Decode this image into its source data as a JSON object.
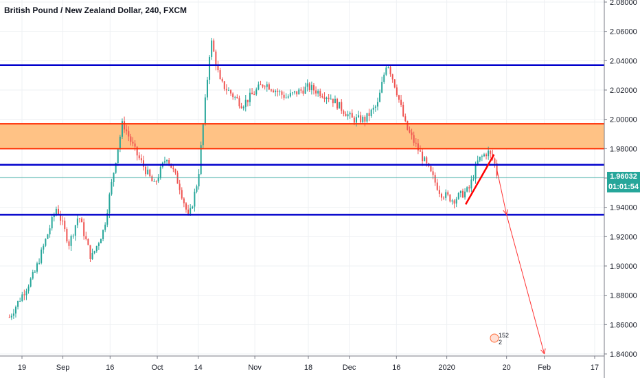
{
  "header": {
    "title": "British Pound / New Zealand Dollar, 240, FXCM"
  },
  "price_tags": {
    "last_price": "1.96032",
    "countdown": "01:01:54"
  },
  "badge": {
    "text": "152 2"
  },
  "colors": {
    "background": "#ffffff",
    "up_candle": "#26a69a",
    "down_candle": "#ef5350",
    "support_resistance": "#0000cc",
    "zone_fill": "#ffc285",
    "zone_border": "#ff2a00",
    "trendline": "#ff0000",
    "projection": "#ff3333",
    "price_line": "#26a69a",
    "axis_text": "#131722"
  },
  "chart_data": {
    "type": "candlestick",
    "title": "British Pound / New Zealand Dollar, 240, FXCM",
    "xlabel": "",
    "ylabel": "",
    "x_ticks": [
      "19",
      "Sep",
      "16",
      "Oct",
      "14",
      "Nov",
      "18",
      "Dec",
      "16",
      "2020",
      "20",
      "Feb",
      "17"
    ],
    "y_ticks": [
      "1.84000",
      "1.86000",
      "1.88000",
      "1.90000",
      "1.92000",
      "1.94000",
      "1.96000",
      "1.98000",
      "2.00000",
      "2.02000",
      "2.04000",
      "2.06000",
      "2.08000"
    ],
    "ylim": [
      1.84,
      2.08
    ],
    "grid": true,
    "last_price": 1.96032,
    "horizontal_lines": [
      2.037,
      1.969,
      1.935
    ],
    "zone": [
      1.98,
      1.997
    ],
    "trendline": {
      "from": [
        "Jan 7",
        1.942
      ],
      "to": [
        "Jan 16",
        1.976
      ]
    },
    "projection_path": [
      [
        "Jan 17",
        1.965
      ],
      [
        "Jan 20",
        1.935
      ],
      [
        "Feb 1",
        1.84
      ]
    ],
    "path_keypoints": [
      [
        "Aug 15",
        1.865
      ],
      [
        "Aug 23",
        1.895
      ],
      [
        "Aug 30",
        1.94
      ],
      [
        "Sep 3",
        1.915
      ],
      [
        "Sep 6",
        1.935
      ],
      [
        "Sep 10",
        1.905
      ],
      [
        "Sep 14",
        1.925
      ],
      [
        "Sep 18",
        1.975
      ],
      [
        "Sep 20",
        1.998
      ],
      [
        "Sep 24",
        1.978
      ],
      [
        "Sep 30",
        1.955
      ],
      [
        "Oct 4",
        1.975
      ],
      [
        "Oct 8",
        1.955
      ],
      [
        "Oct 11",
        1.932
      ],
      [
        "Oct 14",
        1.96
      ],
      [
        "Oct 17",
        2.03
      ],
      [
        "Oct 18",
        2.055
      ],
      [
        "Oct 21",
        2.025
      ],
      [
        "Oct 28",
        2.01
      ],
      [
        "Nov 4",
        2.025
      ],
      [
        "Nov 11",
        2.015
      ],
      [
        "Nov 18",
        2.022
      ],
      [
        "Nov 25",
        2.015
      ],
      [
        "Dec 2",
        2.0
      ],
      [
        "Dec 6",
        2.0
      ],
      [
        "Dec 10",
        2.01
      ],
      [
        "Dec 13",
        2.04
      ],
      [
        "Dec 16",
        2.02
      ],
      [
        "Dec 19",
        1.995
      ],
      [
        "Dec 24",
        1.975
      ],
      [
        "Dec 30",
        1.95
      ],
      [
        "Jan 3",
        1.945
      ],
      [
        "Jan 8",
        1.952
      ],
      [
        "Jan 11",
        1.972
      ],
      [
        "Jan 14",
        1.978
      ],
      [
        "Jan 16",
        1.972
      ],
      [
        "Jan 17",
        1.962
      ]
    ]
  }
}
